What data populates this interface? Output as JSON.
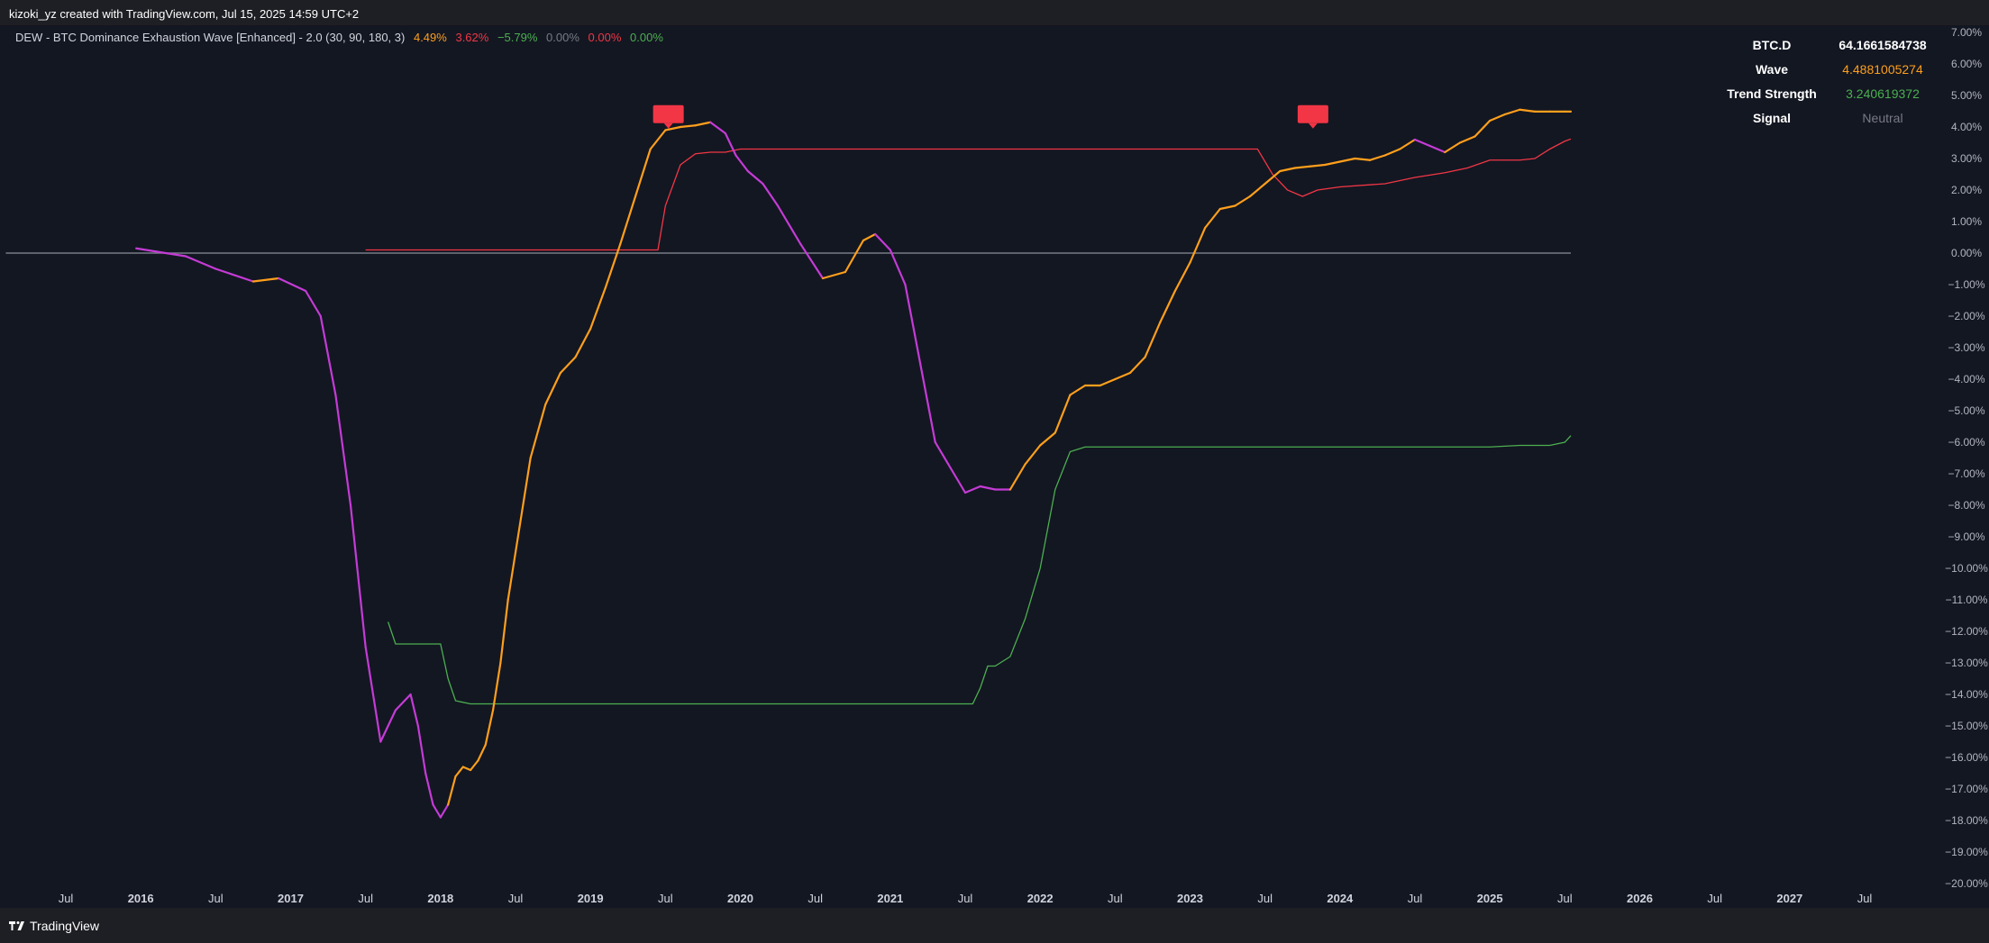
{
  "header": {
    "credit": "kizoki_yz created with TradingView.com, Jul 15, 2025 14:59 UTC+2"
  },
  "legend": {
    "title": "DEW - BTC Dominance Exhaustion Wave [Enhanced] - 2.0 (30, 90, 180, 3)",
    "values": [
      {
        "text": "4.49%",
        "color": "#ff9f1c"
      },
      {
        "text": "3.62%",
        "color": "#f23645"
      },
      {
        "text": "−5.79%",
        "color": "#4caf50"
      },
      {
        "text": "0.00%",
        "color": "#787b86"
      },
      {
        "text": "0.00%",
        "color": "#f23645"
      },
      {
        "text": "0.00%",
        "color": "#4caf50"
      }
    ]
  },
  "info_table": {
    "rows": [
      {
        "key": "BTC.D",
        "value": "64.1661584738"
      },
      {
        "key": "Wave",
        "value": "4.4881005274"
      },
      {
        "key": "Trend Strength",
        "value": "3.240619372"
      },
      {
        "key": "Signal",
        "value": "Neutral"
      }
    ]
  },
  "footer": {
    "brand": "TradingView"
  },
  "colors": {
    "background": "#131722",
    "wave_up": "#ff9f1c",
    "wave_down": "#c53bd6",
    "upper_band": "#f23645",
    "lower_band": "#4caf50",
    "zero_line": "#787b86",
    "marker": "#f23645"
  },
  "chart_data": {
    "type": "line",
    "title": "DEW - BTC Dominance Exhaustion Wave [Enhanced] - 2.0 (30, 90, 180, 3)",
    "ylim": [
      -20,
      7
    ],
    "y_ticks": [
      "7.00%",
      "6.00%",
      "5.00%",
      "4.00%",
      "3.00%",
      "2.00%",
      "1.00%",
      "0.00%",
      "−1.00%",
      "−2.00%",
      "−3.00%",
      "−4.00%",
      "−5.00%",
      "−6.00%",
      "−7.00%",
      "−8.00%",
      "−9.00%",
      "−10.00%",
      "−11.00%",
      "−12.00%",
      "−13.00%",
      "−14.00%",
      "−15.00%",
      "−16.00%",
      "−17.00%",
      "−18.00%",
      "−19.00%",
      "−20.00%"
    ],
    "x_ticks": [
      {
        "label": "Jul",
        "t": 2015.5
      },
      {
        "label": "2016",
        "t": 2016.0
      },
      {
        "label": "Jul",
        "t": 2016.5
      },
      {
        "label": "2017",
        "t": 2017.0
      },
      {
        "label": "Jul",
        "t": 2017.5
      },
      {
        "label": "2018",
        "t": 2018.0
      },
      {
        "label": "Jul",
        "t": 2018.5
      },
      {
        "label": "2019",
        "t": 2019.0
      },
      {
        "label": "Jul",
        "t": 2019.5
      },
      {
        "label": "2020",
        "t": 2020.0
      },
      {
        "label": "Jul",
        "t": 2020.5
      },
      {
        "label": "2021",
        "t": 2021.0
      },
      {
        "label": "Jul",
        "t": 2021.5
      },
      {
        "label": "2022",
        "t": 2022.0
      },
      {
        "label": "Jul",
        "t": 2022.5
      },
      {
        "label": "2023",
        "t": 2023.0
      },
      {
        "label": "Jul",
        "t": 2023.5
      },
      {
        "label": "2024",
        "t": 2024.0
      },
      {
        "label": "Jul",
        "t": 2024.5
      },
      {
        "label": "2025",
        "t": 2025.0
      },
      {
        "label": "Jul",
        "t": 2025.5
      },
      {
        "label": "2026",
        "t": 2026.0
      },
      {
        "label": "Jul",
        "t": 2026.5
      },
      {
        "label": "2027",
        "t": 2027.0
      },
      {
        "label": "Jul",
        "t": 2027.5
      }
    ],
    "series": [
      {
        "color": "#ff9f1c / #c53bd6",
        "x": [
          2015.97,
          2016.1,
          2016.3,
          2016.5,
          2016.75,
          2016.92,
          2017.1,
          2017.2,
          2017.3,
          2017.4,
          2017.5,
          2017.6,
          2017.7,
          2017.8,
          2017.85,
          2017.9,
          2017.95,
          2018.0,
          2018.05,
          2018.1,
          2018.15,
          2018.2,
          2018.25,
          2018.3,
          2018.35,
          2018.4,
          2018.45,
          2018.5,
          2018.6,
          2018.7,
          2018.8,
          2018.9,
          2019.0,
          2019.1,
          2019.2,
          2019.3,
          2019.4,
          2019.5,
          2019.6,
          2019.7,
          2019.8,
          2019.9,
          2019.97,
          2020.05,
          2020.15,
          2020.25,
          2020.4,
          2020.55,
          2020.7,
          2020.82,
          2020.9,
          2021.0,
          2021.1,
          2021.2,
          2021.3,
          2021.4,
          2021.5,
          2021.6,
          2021.7,
          2021.8,
          2021.9,
          2022.0,
          2022.1,
          2022.2,
          2022.3,
          2022.4,
          2022.5,
          2022.6,
          2022.7,
          2022.8,
          2022.9,
          2023.0,
          2023.1,
          2023.2,
          2023.3,
          2023.4,
          2023.5,
          2023.6,
          2023.7,
          2023.8,
          2023.9,
          2024.0,
          2024.1,
          2024.2,
          2024.3,
          2024.4,
          2024.5,
          2024.6,
          2024.7,
          2024.8,
          2024.9,
          2025.0,
          2025.1,
          2025.2,
          2025.3,
          2025.4,
          2025.5,
          2025.54
        ],
        "values": [
          0.15,
          0.05,
          -0.1,
          -0.5,
          -0.9,
          -0.8,
          -1.2,
          -2.0,
          -4.5,
          -8.0,
          -12.5,
          -15.5,
          -14.5,
          -14.0,
          -15.0,
          -16.5,
          -17.5,
          -17.9,
          -17.5,
          -16.6,
          -16.3,
          -16.4,
          -16.1,
          -15.6,
          -14.5,
          -13.0,
          -11.0,
          -9.5,
          -6.5,
          -4.8,
          -3.8,
          -3.3,
          -2.4,
          -1.1,
          0.3,
          1.8,
          3.3,
          3.9,
          4.0,
          4.05,
          4.15,
          3.8,
          3.1,
          2.6,
          2.2,
          1.5,
          0.3,
          -0.8,
          -0.6,
          0.4,
          0.6,
          0.1,
          -1.0,
          -3.5,
          -6.0,
          -6.8,
          -7.6,
          -7.4,
          -7.5,
          -7.5,
          -6.7,
          -6.1,
          -5.7,
          -4.5,
          -4.2,
          -4.2,
          -4.0,
          -3.8,
          -3.3,
          -2.2,
          -1.2,
          -0.3,
          0.8,
          1.4,
          1.5,
          1.8,
          2.2,
          2.6,
          2.7,
          2.75,
          2.8,
          2.9,
          3.0,
          2.95,
          3.1,
          3.3,
          3.6,
          3.4,
          3.2,
          3.5,
          3.7,
          4.2,
          4.4,
          4.55,
          4.49,
          4.49,
          4.49,
          4.49
        ],
        "direction": [
          "down",
          "down",
          "down",
          "down",
          "down",
          "up",
          "down",
          "down",
          "down",
          "down",
          "down",
          "down",
          "down",
          "down",
          "down",
          "down",
          "down",
          "down",
          "down",
          "up",
          "up",
          "up",
          "up",
          "up",
          "up",
          "up",
          "up",
          "up",
          "up",
          "up",
          "up",
          "up",
          "up",
          "up",
          "up",
          "up",
          "up",
          "up",
          "up",
          "up",
          "up",
          "down",
          "down",
          "down",
          "down",
          "down",
          "down",
          "down",
          "up",
          "up",
          "up",
          "down",
          "down",
          "down",
          "down",
          "down",
          "down",
          "down",
          "down",
          "down",
          "up",
          "up",
          "up",
          "up",
          "up",
          "up",
          "up",
          "up",
          "up",
          "up",
          "up",
          "up",
          "up",
          "up",
          "up",
          "up",
          "up",
          "up",
          "up",
          "up",
          "up",
          "up",
          "up",
          "up",
          "up",
          "up",
          "up",
          "down",
          "down",
          "up",
          "up",
          "up",
          "up",
          "up",
          "up",
          "up",
          "up",
          "up"
        ]
      },
      {
        "color": "#f23645",
        "x": [
          2017.5,
          2018.0,
          2019.0,
          2019.45,
          2019.5,
          2019.6,
          2019.7,
          2019.8,
          2019.9,
          2020.0,
          2021.0,
          2022.0,
          2023.0,
          2023.3,
          2023.45,
          2023.55,
          2023.65,
          2023.75,
          2023.85,
          2024.0,
          2024.3,
          2024.5,
          2024.7,
          2024.85,
          2025.0,
          2025.2,
          2025.3,
          2025.4,
          2025.5,
          2025.54
        ],
        "values": [
          0.1,
          0.1,
          0.1,
          0.1,
          1.5,
          2.8,
          3.15,
          3.2,
          3.2,
          3.3,
          3.3,
          3.3,
          3.3,
          3.3,
          3.3,
          2.5,
          2.0,
          1.8,
          2.0,
          2.1,
          2.2,
          2.4,
          2.55,
          2.7,
          2.95,
          2.95,
          3.0,
          3.3,
          3.55,
          3.62
        ]
      },
      {
        "color": "#4caf50",
        "x": [
          2017.65,
          2017.7,
          2018.0,
          2018.05,
          2018.1,
          2018.2,
          2019.0,
          2020.0,
          2021.0,
          2021.55,
          2021.6,
          2021.65,
          2021.7,
          2021.8,
          2021.9,
          2022.0,
          2022.1,
          2022.2,
          2022.3,
          2022.35,
          2022.4,
          2022.5,
          2023.0,
          2024.0,
          2025.0,
          2025.2,
          2025.4,
          2025.5,
          2025.54
        ],
        "values": [
          -11.7,
          -12.4,
          -12.4,
          -13.5,
          -14.2,
          -14.3,
          -14.3,
          -14.3,
          -14.3,
          -14.3,
          -13.8,
          -13.1,
          -13.1,
          -12.8,
          -11.6,
          -10.0,
          -7.5,
          -6.3,
          -6.15,
          -6.15,
          -6.15,
          -6.15,
          -6.15,
          -6.15,
          -6.15,
          -6.1,
          -6.1,
          -6.0,
          -5.79
        ]
      },
      {
        "color": "#787b86",
        "x": [
          2015.1,
          2025.54
        ],
        "values": [
          0,
          0
        ]
      }
    ],
    "markers": [
      {
        "t": 2019.52,
        "y_top": 4.35,
        "color": "#f23645"
      },
      {
        "t": 2023.82,
        "y_top": 4.35,
        "color": "#f23645"
      }
    ]
  }
}
